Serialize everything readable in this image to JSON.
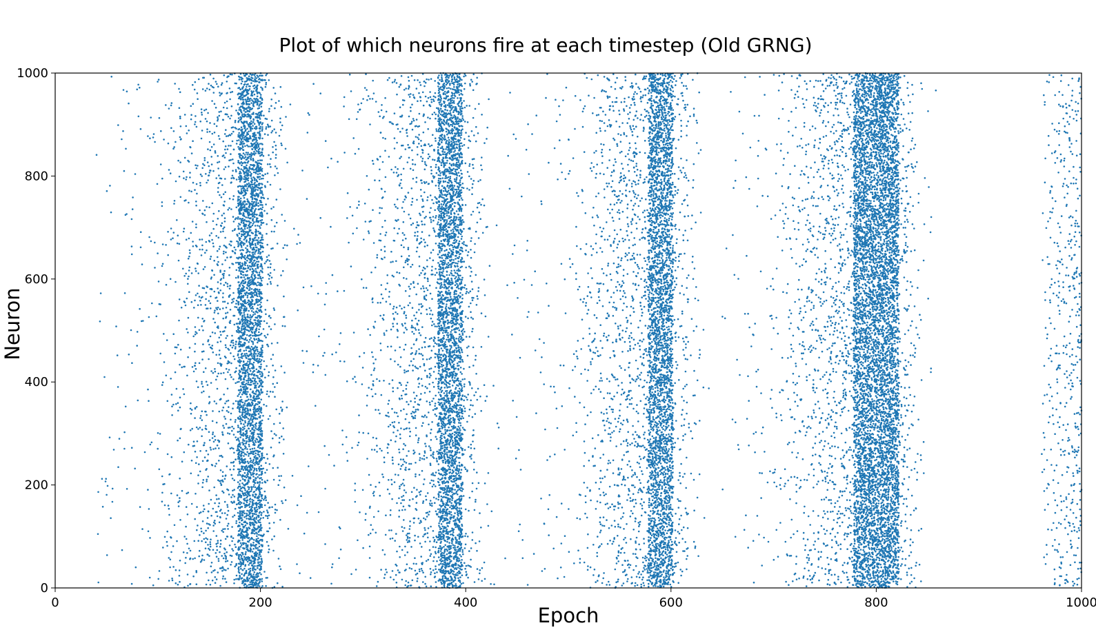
{
  "chart_data": {
    "type": "scatter",
    "title": "Plot of which neurons fire at each timestep (Old GRNG)",
    "xlabel": "Epoch",
    "ylabel": "Neuron",
    "xlim": [
      0,
      1000
    ],
    "ylim": [
      0,
      1000
    ],
    "xticks": [
      0,
      200,
      400,
      600,
      800,
      1000
    ],
    "yticks": [
      0,
      200,
      400,
      600,
      800,
      1000
    ],
    "grid": false,
    "legend": "none",
    "marker_color": "#1f77b4",
    "series": [
      {
        "description_of_structure": "",
        "bursts": [
          {
            "center_epoch": 190,
            "core_halfwidth": 12,
            "spread": 60,
            "neuron_range": [
              0,
              1000
            ]
          },
          {
            "center_epoch": 385,
            "core_halfwidth": 12,
            "spread": 60,
            "neuron_range": [
              0,
              1000
            ]
          },
          {
            "center_epoch": 590,
            "core_halfwidth": 12,
            "spread": 60,
            "neuron_range": [
              0,
              1000
            ]
          },
          {
            "center_epoch": 800,
            "core_halfwidth": 22,
            "spread": 60,
            "neuron_range": [
              0,
              1000
            ]
          }
        ],
        "sparse_region": {
          "epoch_range": [
            960,
            1000
          ],
          "neuron_range": [
            0,
            1000
          ]
        }
      }
    ]
  }
}
